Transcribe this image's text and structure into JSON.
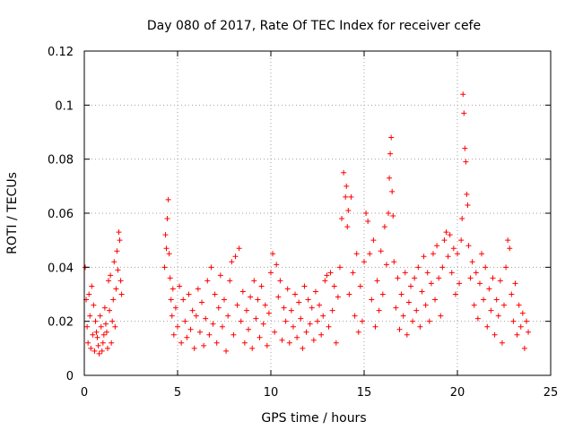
{
  "chart_data": {
    "type": "scatter",
    "title": "Day 080 of 2017, Rate Of TEC Index for receiver cefe",
    "xlabel": "GPS time / hours",
    "ylabel": "ROTI / TECUs",
    "xlim": [
      0,
      25
    ],
    "ylim": [
      0,
      0.12
    ],
    "xticks": [
      0,
      5,
      10,
      15,
      20,
      25
    ],
    "xtick_labels": [
      "0",
      "5",
      "10",
      "15",
      "20",
      "25"
    ],
    "yticks": [
      0,
      0.02,
      0.04,
      0.06,
      0.08,
      0.1,
      0.12
    ],
    "ytick_labels": [
      "0",
      "0.02",
      "0.04",
      "0.06",
      "0.08",
      "0.1",
      "0.12"
    ],
    "grid": true,
    "marker": "plus",
    "color": "#ff0000",
    "series": [
      {
        "name": "ROTI",
        "points": [
          [
            0.05,
            0.04
          ],
          [
            0.1,
            0.028
          ],
          [
            0.15,
            0.018
          ],
          [
            0.2,
            0.012
          ],
          [
            0.25,
            0.03
          ],
          [
            0.3,
            0.022
          ],
          [
            0.35,
            0.01
          ],
          [
            0.4,
            0.033
          ],
          [
            0.45,
            0.015
          ],
          [
            0.5,
            0.026
          ],
          [
            0.55,
            0.009
          ],
          [
            0.6,
            0.02
          ],
          [
            0.7,
            0.014
          ],
          [
            0.8,
            0.008
          ],
          [
            0.9,
            0.018
          ],
          [
            1.0,
            0.012
          ],
          [
            1.1,
            0.025
          ],
          [
            1.2,
            0.016
          ],
          [
            1.3,
            0.035
          ],
          [
            1.4,
            0.037
          ],
          [
            1.5,
            0.02
          ],
          [
            1.55,
            0.028
          ],
          [
            1.6,
            0.042
          ],
          [
            1.7,
            0.032
          ],
          [
            1.75,
            0.046
          ],
          [
            1.8,
            0.039
          ],
          [
            1.85,
            0.053
          ],
          [
            1.9,
            0.05
          ],
          [
            1.95,
            0.035
          ],
          [
            2.0,
            0.03
          ],
          [
            1.65,
            0.018
          ],
          [
            1.45,
            0.012
          ],
          [
            1.25,
            0.01
          ],
          [
            1.05,
            0.015
          ],
          [
            0.85,
            0.022
          ],
          [
            0.65,
            0.016
          ],
          [
            0.75,
            0.011
          ],
          [
            0.95,
            0.009
          ],
          [
            1.15,
            0.019
          ],
          [
            1.35,
            0.024
          ],
          [
            4.3,
            0.04
          ],
          [
            4.35,
            0.052
          ],
          [
            4.4,
            0.047
          ],
          [
            4.45,
            0.058
          ],
          [
            4.5,
            0.065
          ],
          [
            4.55,
            0.045
          ],
          [
            4.6,
            0.036
          ],
          [
            4.65,
            0.028
          ],
          [
            4.7,
            0.022
          ],
          [
            4.75,
            0.032
          ],
          [
            4.8,
            0.015
          ],
          [
            4.9,
            0.025
          ],
          [
            5.0,
            0.018
          ],
          [
            5.1,
            0.033
          ],
          [
            5.2,
            0.012
          ],
          [
            5.3,
            0.028
          ],
          [
            5.4,
            0.02
          ],
          [
            5.5,
            0.014
          ],
          [
            5.6,
            0.03
          ],
          [
            5.7,
            0.017
          ],
          [
            5.8,
            0.024
          ],
          [
            5.9,
            0.01
          ],
          [
            6.0,
            0.022
          ],
          [
            6.1,
            0.032
          ],
          [
            6.2,
            0.016
          ],
          [
            6.3,
            0.027
          ],
          [
            6.4,
            0.011
          ],
          [
            6.5,
            0.021
          ],
          [
            6.6,
            0.035
          ],
          [
            6.7,
            0.015
          ],
          [
            6.8,
            0.04
          ],
          [
            6.9,
            0.019
          ],
          [
            7.0,
            0.03
          ],
          [
            7.1,
            0.012
          ],
          [
            7.2,
            0.025
          ],
          [
            7.3,
            0.037
          ],
          [
            7.4,
            0.018
          ],
          [
            7.5,
            0.028
          ],
          [
            7.6,
            0.009
          ],
          [
            7.7,
            0.022
          ],
          [
            7.8,
            0.035
          ],
          [
            7.9,
            0.042
          ],
          [
            8.0,
            0.015
          ],
          [
            8.1,
            0.044
          ],
          [
            8.2,
            0.026
          ],
          [
            8.3,
            0.047
          ],
          [
            8.4,
            0.02
          ],
          [
            8.5,
            0.031
          ],
          [
            8.6,
            0.012
          ],
          [
            8.7,
            0.024
          ],
          [
            8.8,
            0.017
          ],
          [
            8.9,
            0.029
          ],
          [
            9.0,
            0.01
          ],
          [
            9.1,
            0.035
          ],
          [
            9.2,
            0.021
          ],
          [
            9.3,
            0.028
          ],
          [
            9.4,
            0.014
          ],
          [
            9.5,
            0.033
          ],
          [
            9.6,
            0.019
          ],
          [
            9.7,
            0.026
          ],
          [
            9.8,
            0.011
          ],
          [
            9.9,
            0.023
          ],
          [
            10.0,
            0.038
          ],
          [
            10.1,
            0.045
          ],
          [
            10.2,
            0.016
          ],
          [
            10.3,
            0.041
          ],
          [
            10.4,
            0.029
          ],
          [
            10.5,
            0.035
          ],
          [
            10.6,
            0.013
          ],
          [
            10.7,
            0.025
          ],
          [
            10.8,
            0.02
          ],
          [
            10.9,
            0.032
          ],
          [
            11.0,
            0.012
          ],
          [
            11.1,
            0.024
          ],
          [
            11.2,
            0.018
          ],
          [
            11.3,
            0.03
          ],
          [
            11.4,
            0.014
          ],
          [
            11.5,
            0.027
          ],
          [
            11.6,
            0.021
          ],
          [
            11.7,
            0.01
          ],
          [
            11.8,
            0.033
          ],
          [
            11.9,
            0.016
          ],
          [
            12.0,
            0.028
          ],
          [
            12.1,
            0.019
          ],
          [
            12.2,
            0.025
          ],
          [
            12.3,
            0.013
          ],
          [
            12.4,
            0.031
          ],
          [
            12.5,
            0.02
          ],
          [
            12.6,
            0.026
          ],
          [
            12.7,
            0.015
          ],
          [
            12.8,
            0.022
          ],
          [
            12.9,
            0.035
          ],
          [
            13.0,
            0.037
          ],
          [
            13.1,
            0.018
          ],
          [
            13.2,
            0.038
          ],
          [
            13.3,
            0.024
          ],
          [
            13.4,
            0.033
          ],
          [
            13.5,
            0.012
          ],
          [
            13.6,
            0.029
          ],
          [
            13.7,
            0.04
          ],
          [
            13.8,
            0.058
          ],
          [
            13.9,
            0.075
          ],
          [
            14.0,
            0.066
          ],
          [
            14.05,
            0.07
          ],
          [
            14.1,
            0.055
          ],
          [
            14.15,
            0.061
          ],
          [
            14.2,
            0.03
          ],
          [
            14.3,
            0.066
          ],
          [
            14.4,
            0.038
          ],
          [
            14.5,
            0.022
          ],
          [
            14.6,
            0.045
          ],
          [
            14.7,
            0.016
          ],
          [
            14.8,
            0.033
          ],
          [
            14.9,
            0.02
          ],
          [
            15.0,
            0.042
          ],
          [
            15.1,
            0.06
          ],
          [
            15.2,
            0.057
          ],
          [
            15.3,
            0.045
          ],
          [
            15.4,
            0.028
          ],
          [
            15.5,
            0.05
          ],
          [
            15.6,
            0.018
          ],
          [
            15.7,
            0.035
          ],
          [
            15.8,
            0.024
          ],
          [
            15.9,
            0.046
          ],
          [
            16.0,
            0.03
          ],
          [
            16.1,
            0.055
          ],
          [
            16.2,
            0.041
          ],
          [
            16.3,
            0.06
          ],
          [
            16.35,
            0.073
          ],
          [
            16.4,
            0.082
          ],
          [
            16.45,
            0.088
          ],
          [
            16.5,
            0.068
          ],
          [
            16.55,
            0.059
          ],
          [
            16.6,
            0.042
          ],
          [
            16.7,
            0.025
          ],
          [
            16.8,
            0.036
          ],
          [
            16.9,
            0.017
          ],
          [
            17.0,
            0.03
          ],
          [
            17.1,
            0.022
          ],
          [
            17.2,
            0.038
          ],
          [
            17.3,
            0.015
          ],
          [
            17.4,
            0.027
          ],
          [
            17.5,
            0.033
          ],
          [
            17.6,
            0.02
          ],
          [
            17.7,
            0.036
          ],
          [
            17.8,
            0.024
          ],
          [
            17.9,
            0.04
          ],
          [
            18.0,
            0.018
          ],
          [
            18.1,
            0.031
          ],
          [
            18.2,
            0.044
          ],
          [
            18.3,
            0.026
          ],
          [
            18.4,
            0.038
          ],
          [
            18.5,
            0.02
          ],
          [
            18.6,
            0.034
          ],
          [
            18.7,
            0.045
          ],
          [
            18.8,
            0.028
          ],
          [
            18.9,
            0.048
          ],
          [
            19.0,
            0.036
          ],
          [
            19.1,
            0.022
          ],
          [
            19.2,
            0.04
          ],
          [
            19.3,
            0.05
          ],
          [
            19.4,
            0.053
          ],
          [
            19.5,
            0.044
          ],
          [
            19.6,
            0.052
          ],
          [
            19.7,
            0.038
          ],
          [
            19.8,
            0.047
          ],
          [
            19.9,
            0.03
          ],
          [
            20.0,
            0.045
          ],
          [
            20.1,
            0.034
          ],
          [
            20.2,
            0.05
          ],
          [
            20.25,
            0.058
          ],
          [
            20.3,
            0.104
          ],
          [
            20.35,
            0.097
          ],
          [
            20.4,
            0.084
          ],
          [
            20.45,
            0.079
          ],
          [
            20.5,
            0.067
          ],
          [
            20.55,
            0.063
          ],
          [
            20.6,
            0.048
          ],
          [
            20.7,
            0.036
          ],
          [
            20.8,
            0.042
          ],
          [
            20.9,
            0.026
          ],
          [
            21.0,
            0.038
          ],
          [
            21.1,
            0.021
          ],
          [
            21.2,
            0.034
          ],
          [
            21.3,
            0.045
          ],
          [
            21.4,
            0.028
          ],
          [
            21.5,
            0.04
          ],
          [
            21.6,
            0.018
          ],
          [
            21.7,
            0.032
          ],
          [
            21.8,
            0.024
          ],
          [
            21.9,
            0.036
          ],
          [
            22.0,
            0.015
          ],
          [
            22.1,
            0.028
          ],
          [
            22.2,
            0.022
          ],
          [
            22.3,
            0.035
          ],
          [
            22.4,
            0.012
          ],
          [
            22.5,
            0.026
          ],
          [
            22.6,
            0.04
          ],
          [
            22.7,
            0.05
          ],
          [
            22.8,
            0.047
          ],
          [
            22.9,
            0.03
          ],
          [
            23.0,
            0.02
          ],
          [
            23.1,
            0.034
          ],
          [
            23.2,
            0.015
          ],
          [
            23.3,
            0.026
          ],
          [
            23.4,
            0.018
          ],
          [
            23.5,
            0.023
          ],
          [
            23.6,
            0.01
          ],
          [
            23.7,
            0.02
          ],
          [
            23.8,
            0.016
          ]
        ]
      }
    ]
  }
}
